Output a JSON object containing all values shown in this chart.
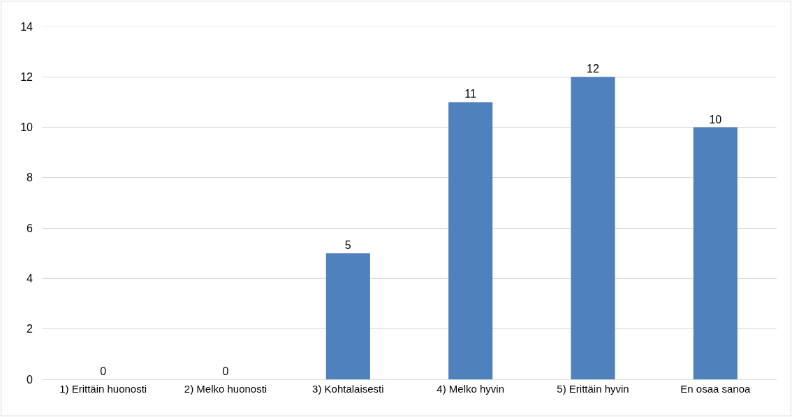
{
  "chart_data": {
    "type": "bar",
    "categories": [
      "1) Erittäin huonosti",
      "2) Melko huonosti",
      "3) Kohtalaisesti",
      "4) Melko hyvin",
      "5) Erittäin hyvin",
      "En osaa sanoa"
    ],
    "values": [
      0,
      0,
      5,
      11,
      12,
      10
    ],
    "color": "#4f81bd",
    "ylim": [
      0,
      14
    ],
    "yticks": [
      0,
      2,
      4,
      6,
      8,
      10,
      12,
      14
    ],
    "grid": "y",
    "data_labels": true
  }
}
